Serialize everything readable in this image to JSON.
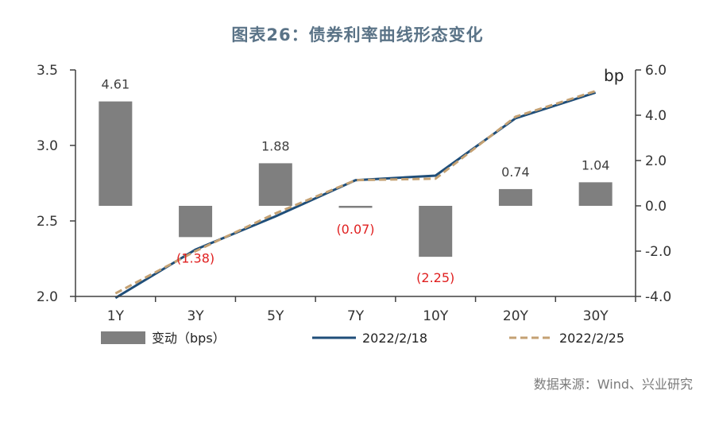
{
  "title": "图表26：债券利率曲线形态变化",
  "source": "数据来源：Wind、兴业研究",
  "colors": {
    "bar": "#7f7f7f",
    "line_feb18": "#1f4e79",
    "line_feb25": "#c4a173",
    "positive_label": "#404040",
    "negative_label": "#e02020",
    "axis": "#404040"
  },
  "chart_data": {
    "type": "bar",
    "categories": [
      "1Y",
      "3Y",
      "5Y",
      "7Y",
      "10Y",
      "20Y",
      "30Y"
    ],
    "series": [
      {
        "name": "变动（bps）",
        "kind": "bar",
        "axis": "right",
        "values": [
          4.61,
          -1.38,
          1.88,
          -0.07,
          -2.25,
          0.74,
          1.04
        ],
        "labels": [
          "4.61",
          "(1.38)",
          "1.88",
          "(0.07)",
          "(2.25)",
          "0.74",
          "1.04"
        ]
      },
      {
        "name": "2022/2/18",
        "kind": "line",
        "axis": "left",
        "values": [
          1.99,
          2.31,
          2.53,
          2.77,
          2.8,
          3.18,
          3.35
        ]
      },
      {
        "name": "2022/2/25",
        "kind": "line",
        "style": "dashed",
        "axis": "left",
        "values": [
          2.02,
          2.3,
          2.55,
          2.77,
          2.78,
          3.19,
          3.36
        ]
      }
    ],
    "left_axis": {
      "ylim": [
        2.0,
        3.5
      ],
      "ticks": [
        "2.0",
        "2.5",
        "3.0",
        "3.5"
      ]
    },
    "right_axis": {
      "label": "bp",
      "ylim": [
        -4.0,
        6.0
      ],
      "ticks": [
        "-4.0",
        "-2.0",
        "0.0",
        "2.0",
        "4.0",
        "6.0"
      ]
    },
    "legend_position": "bottom",
    "grid": false
  }
}
